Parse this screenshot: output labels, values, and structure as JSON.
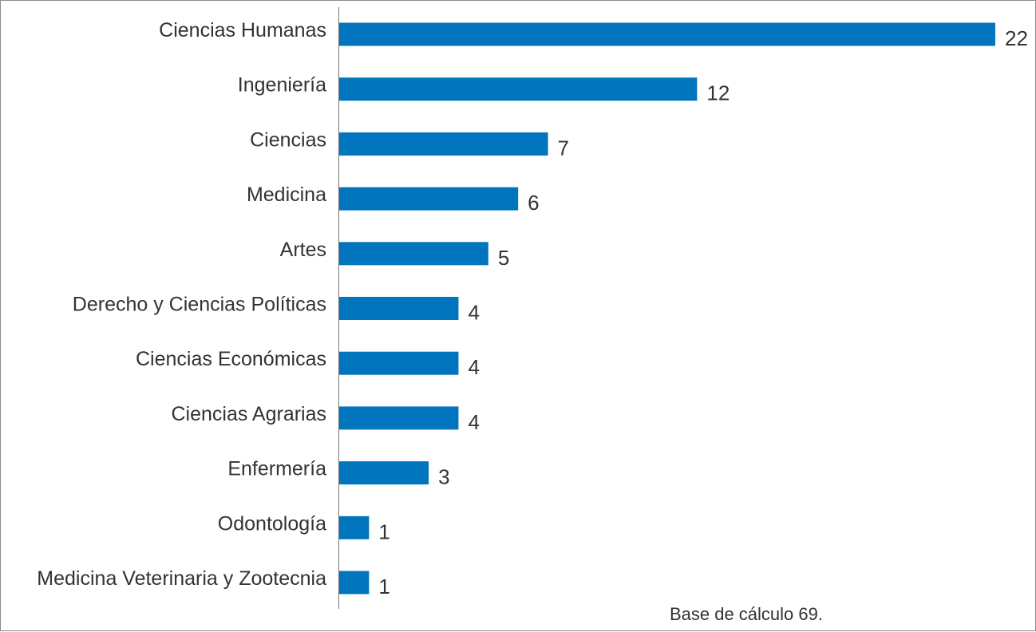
{
  "chart_data": {
    "type": "bar",
    "orientation": "horizontal",
    "title": "",
    "xlabel": "",
    "ylabel": "",
    "categories": [
      "Ciencias Humanas",
      "Ingeniería",
      "Ciencias",
      "Medicina",
      "Artes",
      "Derecho y Ciencias Políticas",
      "Ciencias Económicas",
      "Ciencias Agrarias",
      "Enfermería",
      "Odontología",
      "Medicina Veterinaria y Zootecnia"
    ],
    "values": [
      22,
      12,
      7,
      6,
      5,
      4,
      4,
      4,
      3,
      1,
      1
    ],
    "xlim": [
      0,
      22
    ],
    "grid": false,
    "bar_color": "#0075bd",
    "note": "Base de cálculo 69."
  }
}
